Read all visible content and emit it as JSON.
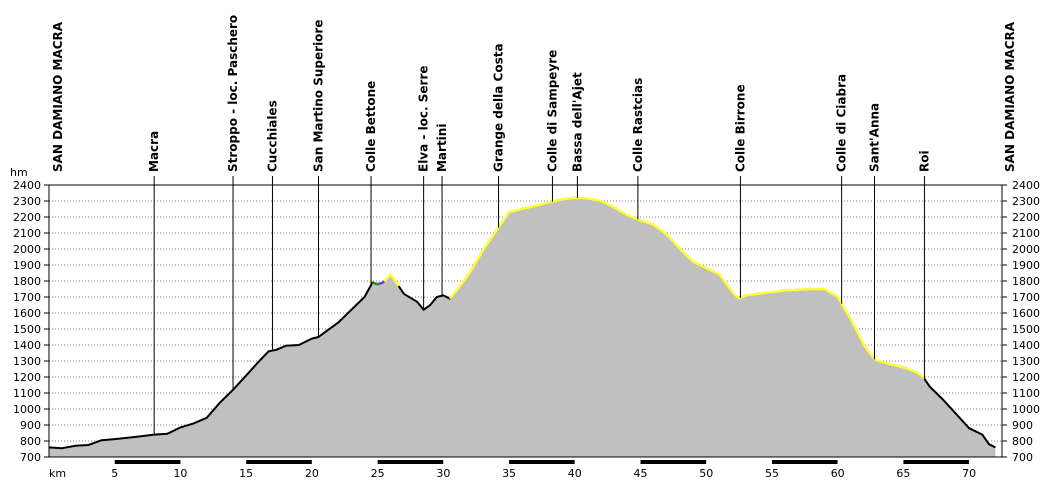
{
  "chart_data": {
    "type": "area",
    "xlabel": "km",
    "ylabel": "hm",
    "xlim": [
      0,
      72.5
    ],
    "ylim": [
      700,
      2400
    ],
    "x_ticks": [
      5,
      10,
      15,
      20,
      25,
      30,
      35,
      40,
      45,
      50,
      55,
      60,
      65,
      70
    ],
    "y_ticks": [
      700,
      800,
      900,
      1000,
      1100,
      1200,
      1300,
      1400,
      1500,
      1600,
      1700,
      1800,
      1900,
      2000,
      2100,
      2200,
      2300,
      2400
    ],
    "grid": true,
    "colors": {
      "fill": "#c0c0c0",
      "road": "#000000",
      "gravel": "#ffff33",
      "marker_green": "#228b22",
      "marker_purple": "#7b2cff"
    },
    "profile": {
      "x": [
        0,
        1,
        2,
        3,
        4,
        5,
        6,
        7,
        8,
        9,
        10,
        11,
        12,
        13,
        14,
        15,
        16,
        16.7,
        17.3,
        18,
        19,
        20,
        20.5,
        21,
        22,
        23,
        24,
        24.6,
        25,
        25.4,
        26,
        27,
        28,
        28.5,
        29,
        29.5,
        30,
        30.5,
        31,
        32,
        33,
        34,
        35,
        36,
        37,
        38,
        39,
        40,
        41,
        42,
        43,
        44,
        45,
        46,
        47,
        48,
        49,
        50,
        51,
        52,
        52.5,
        53,
        54,
        55,
        56,
        57,
        58,
        59,
        60,
        61,
        62,
        62.8,
        63.5,
        64,
        65,
        66,
        66.5,
        67,
        68,
        69,
        70,
        71,
        71.5,
        72
      ],
      "y": [
        760,
        755,
        770,
        775,
        805,
        812,
        820,
        830,
        840,
        845,
        885,
        910,
        945,
        1040,
        1120,
        1210,
        1300,
        1360,
        1370,
        1395,
        1400,
        1440,
        1450,
        1480,
        1540,
        1620,
        1700,
        1790,
        1780,
        1790,
        1840,
        1720,
        1670,
        1620,
        1650,
        1700,
        1710,
        1690,
        1740,
        1850,
        1990,
        2110,
        2230,
        2250,
        2270,
        2290,
        2310,
        2320,
        2315,
        2300,
        2260,
        2210,
        2180,
        2150,
        2090,
        2000,
        1920,
        1880,
        1840,
        1730,
        1690,
        1710,
        1720,
        1730,
        1740,
        1745,
        1750,
        1750,
        1700,
        1560,
        1400,
        1310,
        1290,
        1280,
        1260,
        1230,
        1200,
        1140,
        1060,
        970,
        880,
        840,
        780,
        760
      ],
      "gravel_segments": [
        [
          25.4,
          26.6
        ],
        [
          30.5,
          66.6
        ]
      ],
      "green_segment": [
        24.6,
        25.2
      ],
      "purple_segment": [
        25.2,
        25.5
      ]
    },
    "places": [
      {
        "label": "SAN DAMIANO MACRA",
        "km": 0,
        "edge": true
      },
      {
        "label": "Macra",
        "km": 8
      },
      {
        "label": "Stroppo - loc. Paschero",
        "km": 14
      },
      {
        "label": "Cucchiales",
        "km": 17
      },
      {
        "label": "San Martino Superiore",
        "km": 20.5
      },
      {
        "label": "Colle Bettone",
        "km": 24.5
      },
      {
        "label": "Elva - loc. Serre",
        "km": 28.5
      },
      {
        "label": "Martini",
        "km": 29.9
      },
      {
        "label": "Grange della Costa",
        "km": 34.2
      },
      {
        "label": "Colle di Sampeyre",
        "km": 38.3
      },
      {
        "label": "Bassa dell'Ajet",
        "km": 40.2
      },
      {
        "label": "Colle Rastcias",
        "km": 44.8
      },
      {
        "label": "Colle Birrone",
        "km": 52.6
      },
      {
        "label": "Colle di Ciabra",
        "km": 60.3
      },
      {
        "label": "Sant'Anna",
        "km": 62.8
      },
      {
        "label": "Roi",
        "km": 66.6
      },
      {
        "label": "SAN DAMIANO MACRA",
        "km": 72.5,
        "edge": true
      }
    ]
  }
}
